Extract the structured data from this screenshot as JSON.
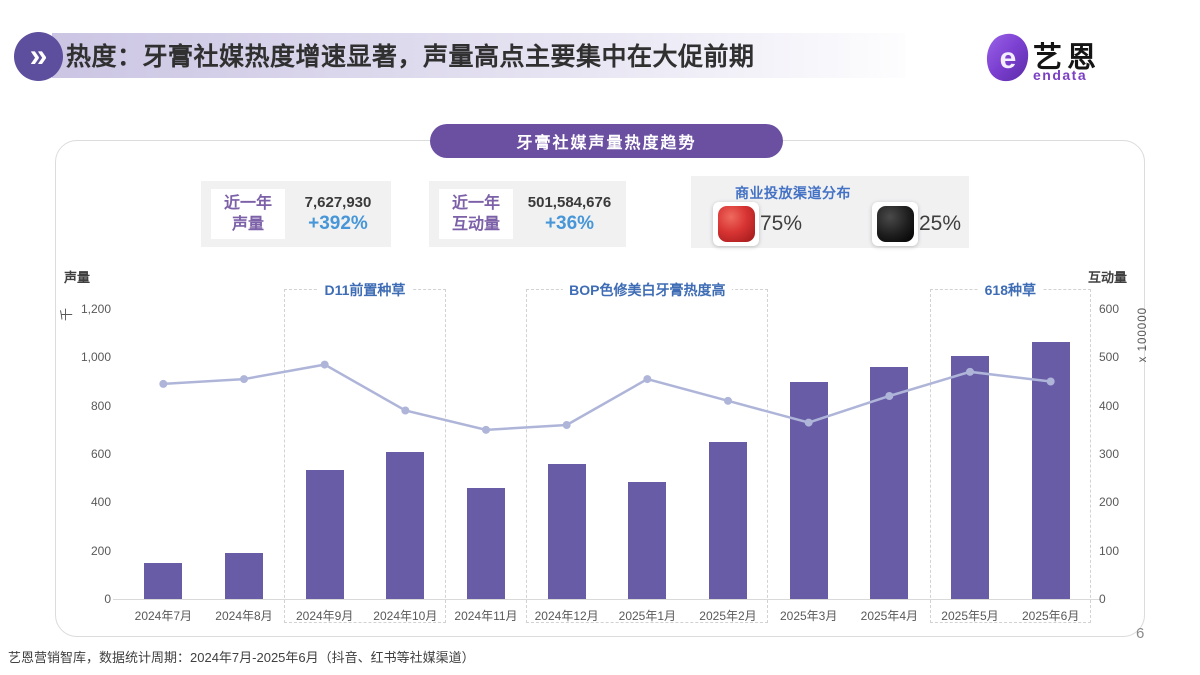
{
  "header": {
    "chevron": "»",
    "title": "热度：牙膏社媒热度增速显著，声量高点主要集中在大促前期",
    "logo": {
      "letter": "e",
      "name_cn": "艺恩",
      "name_en": "endata"
    }
  },
  "panel_title": "牙膏社媒声量热度趋势",
  "stats": [
    {
      "label_line1": "近一年",
      "label_line2": "声量",
      "value": "7,627,930",
      "change": "+392%"
    },
    {
      "label_line1": "近一年",
      "label_line2": "互动量",
      "value": "501,584,676",
      "change": "+36%"
    }
  ],
  "channels": {
    "title": "商业投放渠道分布",
    "items": [
      {
        "icon": "xiaohongshu-icon",
        "percent": "75%"
      },
      {
        "icon": "douyin-icon",
        "percent": "25%"
      }
    ]
  },
  "chart_data": {
    "type": "bar",
    "title": "牙膏社媒声量热度趋势",
    "categories": [
      "2024年7月",
      "2024年8月",
      "2024年9月",
      "2024年10月",
      "2024年11月",
      "2024年12月",
      "2025年1月",
      "2025年2月",
      "2025年3月",
      "2025年4月",
      "2025年5月",
      "2025年6月"
    ],
    "series": [
      {
        "name": "声量",
        "chart": "bar",
        "axis": "left",
        "unit": "千",
        "color": "#695ca6",
        "values": [
          150,
          190,
          535,
          610,
          460,
          560,
          485,
          650,
          900,
          960,
          1005,
          1065
        ]
      },
      {
        "name": "互动量",
        "chart": "line",
        "axis": "right",
        "unit": "x 100000",
        "color": "#aeb5d9",
        "values": [
          445,
          455,
          485,
          390,
          350,
          360,
          455,
          410,
          365,
          420,
          470,
          450
        ]
      }
    ],
    "left_axis": {
      "title": "声量",
      "unit": "千",
      "max": 1200,
      "ticks": [
        "0",
        "200",
        "400",
        "600",
        "800",
        "1,000",
        "1,200"
      ]
    },
    "right_axis": {
      "title": "互动量",
      "unit": "x 100000",
      "max": 600,
      "ticks": [
        "0",
        "100",
        "200",
        "300",
        "400",
        "500",
        "600"
      ]
    },
    "annotations": [
      {
        "label": "D11前置种草",
        "start_index": 2,
        "end_index": 3
      },
      {
        "label": "BOP色修美白牙膏热度高",
        "start_index": 5,
        "end_index": 7
      },
      {
        "label": "618种草",
        "start_index": 10,
        "end_index": 11
      }
    ],
    "grid": false,
    "legend": "none"
  },
  "footer": {
    "source": "艺恩营销智库，数据统计周期：2024年7月-2025年6月（抖音、红书等社媒渠道）",
    "page": "6"
  }
}
